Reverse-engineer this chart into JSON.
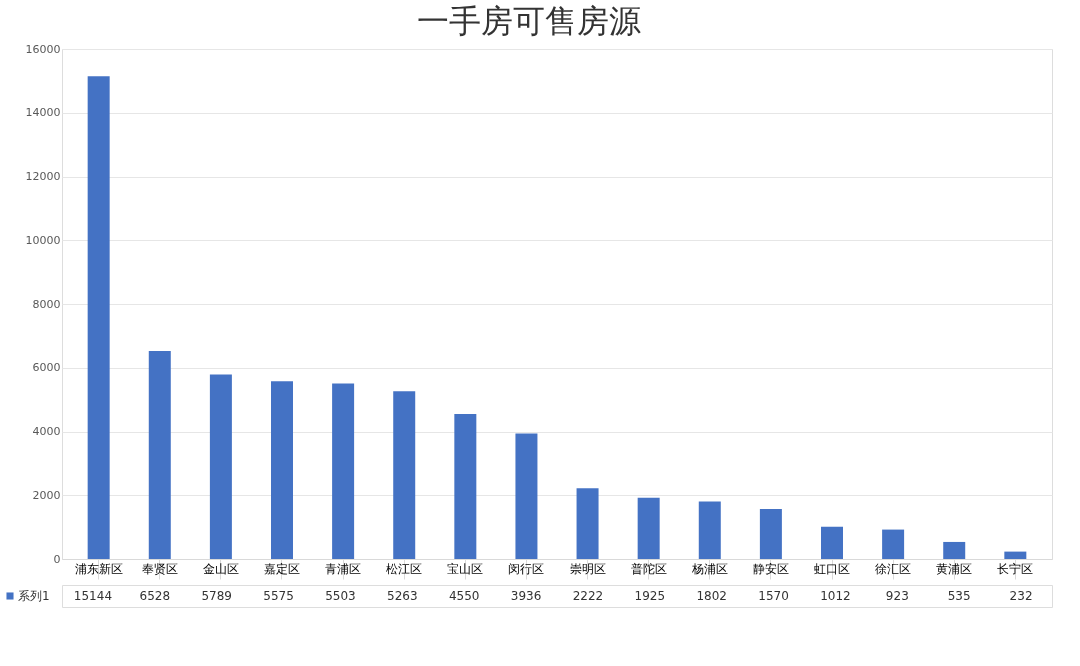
{
  "chart_data": {
    "type": "bar",
    "title": "一手房可售房源",
    "categories": [
      "浦东新区",
      "奉贤区",
      "金山区",
      "嘉定区",
      "青浦区",
      "松江区",
      "宝山区",
      "闵行区",
      "崇明区",
      "普陀区",
      "杨浦区",
      "静安区",
      "虹口区",
      "徐汇区",
      "黄浦区",
      "长宁区"
    ],
    "series": [
      {
        "name": "系列1",
        "color": "#4472c4",
        "values": [
          15144,
          6528,
          5789,
          5575,
          5503,
          5263,
          4550,
          3936,
          2222,
          1925,
          1802,
          1570,
          1012,
          923,
          535,
          232
        ]
      }
    ],
    "ylim": [
      0,
      16000
    ],
    "yticks": [
      0,
      2000,
      4000,
      6000,
      8000,
      10000,
      12000,
      14000,
      16000
    ],
    "grid": "y",
    "data_labels": true,
    "legend": "bottom left"
  }
}
